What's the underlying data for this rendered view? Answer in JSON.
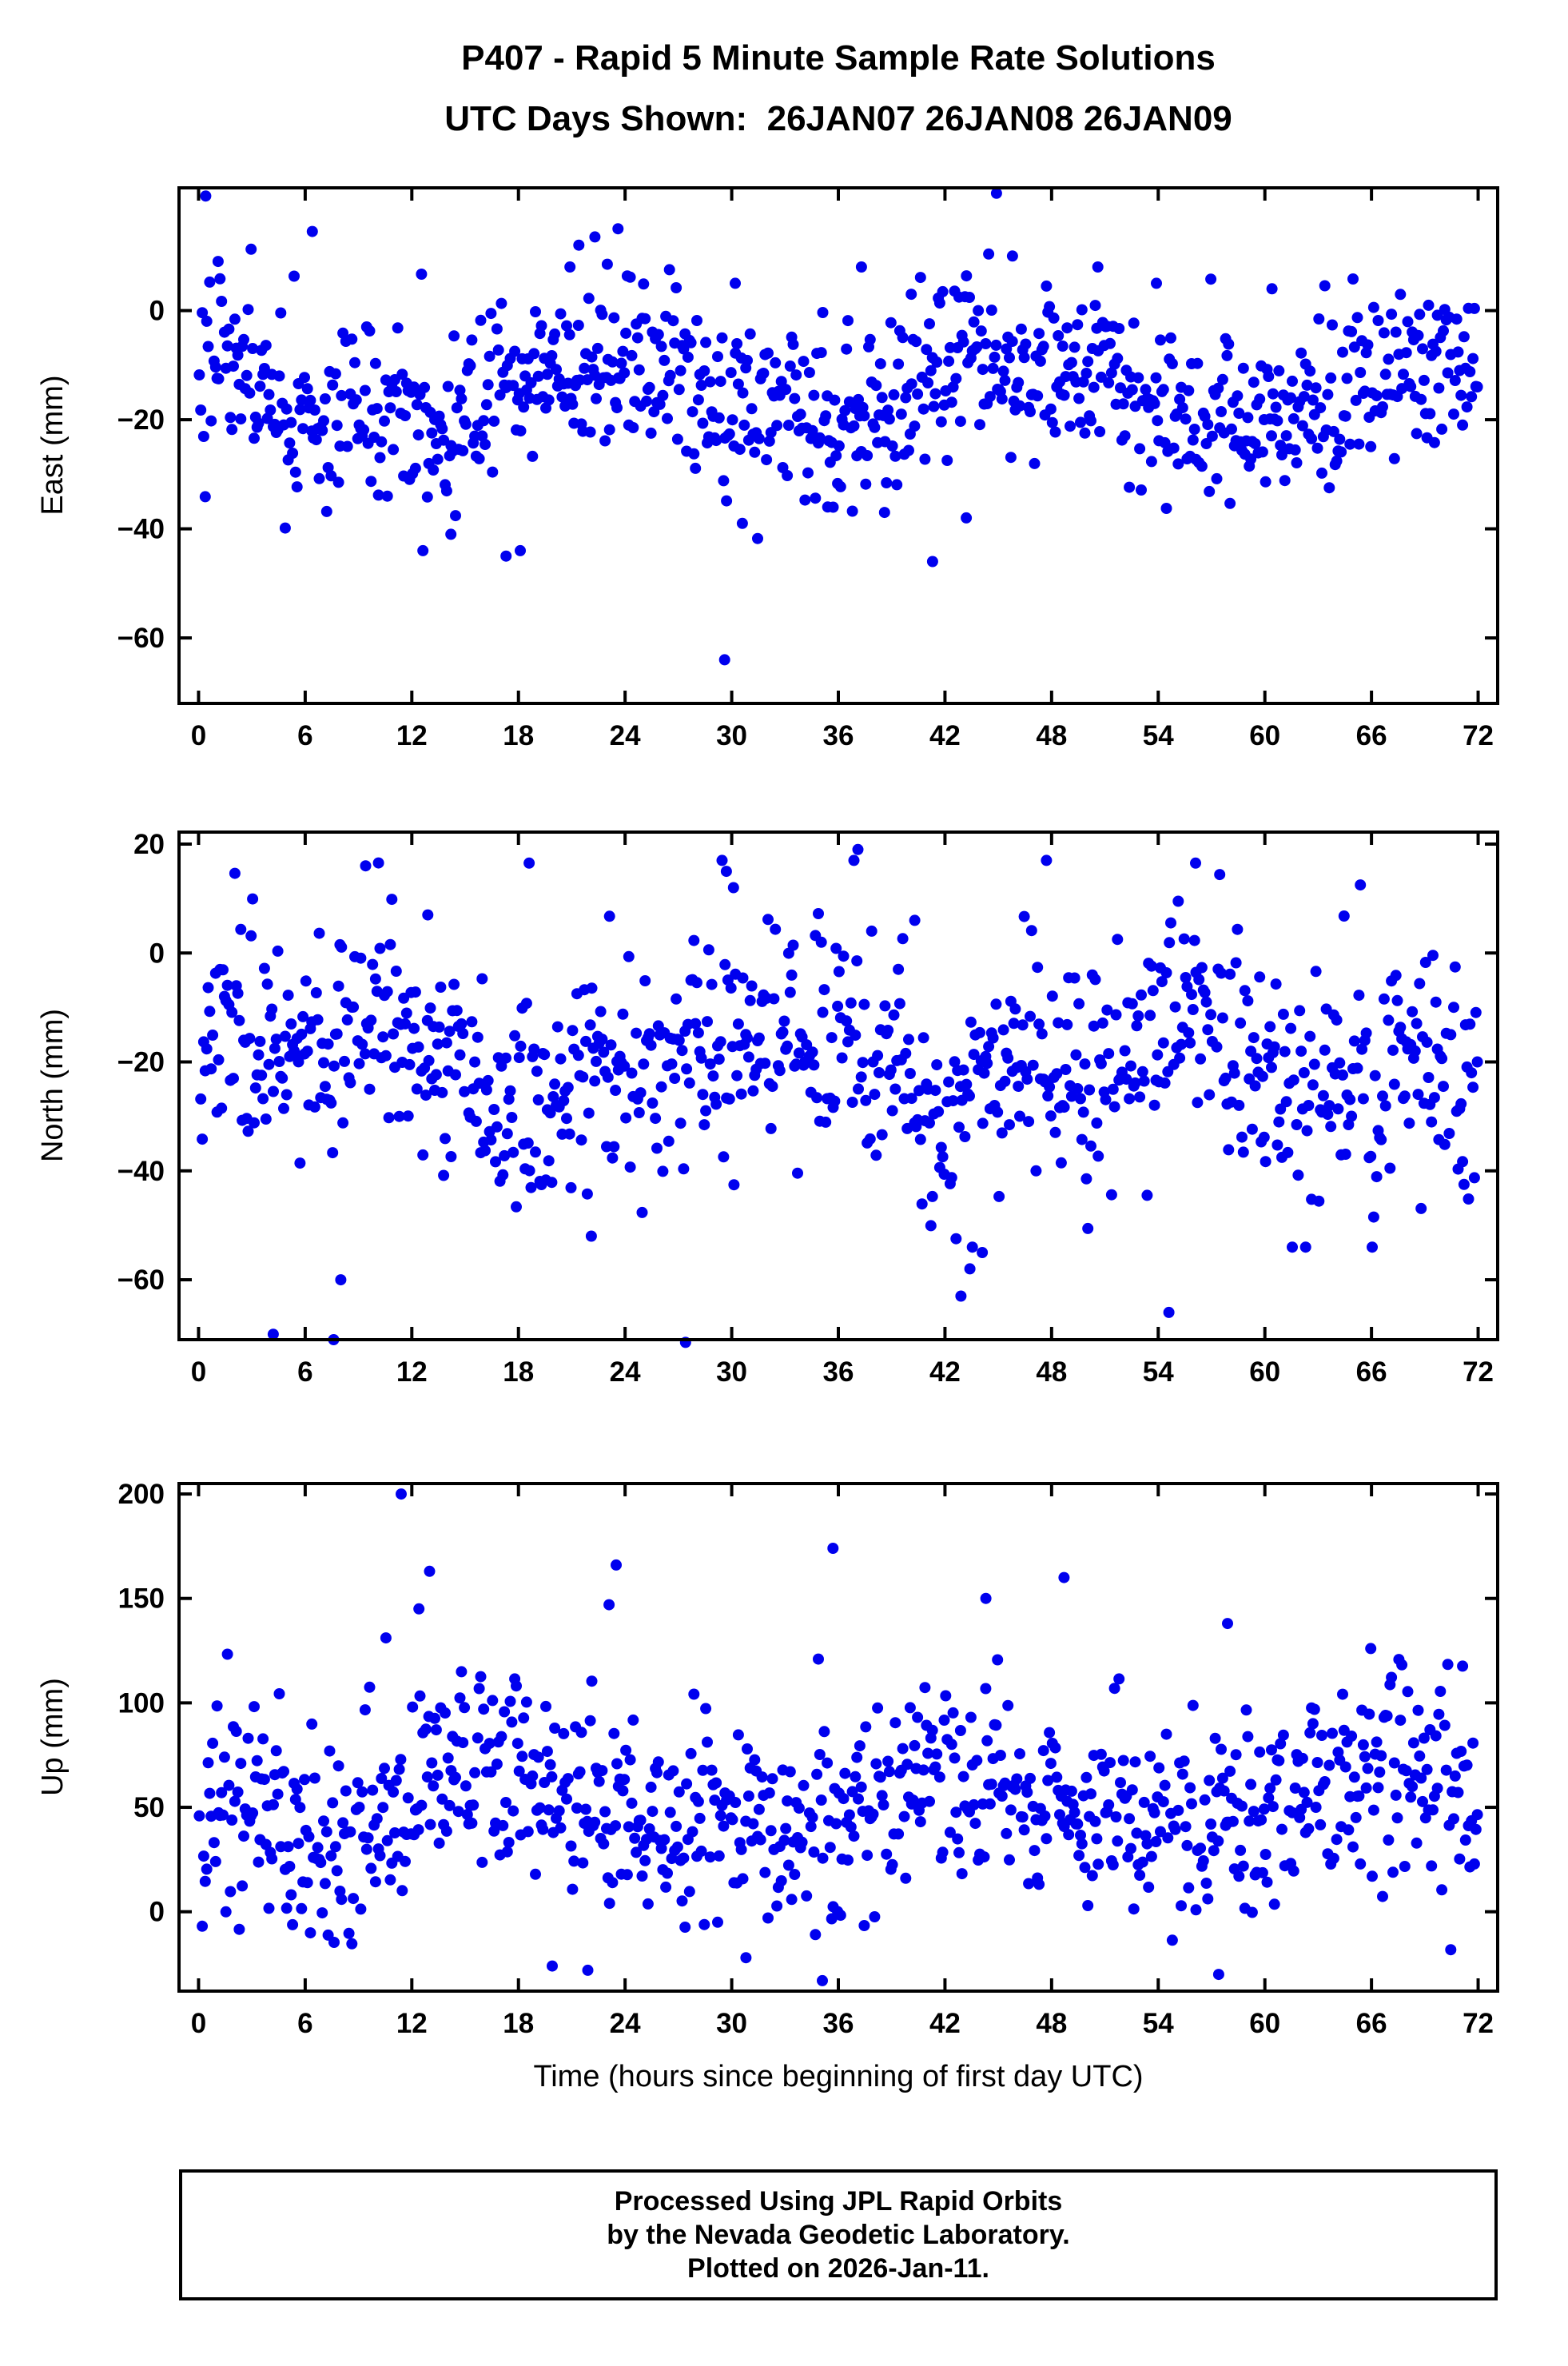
{
  "title": "P407 - Rapid 5 Minute Sample Rate Solutions",
  "subtitle": "UTC Days Shown:  26JAN07 26JAN08 26JAN09",
  "xlabel": "Time (hours since beginning of first day UTC)",
  "footer": {
    "lines": [
      "Processed Using JPL Rapid Orbits",
      "by the Nevada Geodetic Laboratory.",
      "Plotted on 2026-Jan-11."
    ]
  },
  "colors": {
    "point": "#0000ee",
    "frame": "#000000",
    "background": "#ffffff"
  },
  "chart_data": [
    {
      "type": "scatter",
      "name": "east",
      "ylabel": "East (mm)",
      "xlim": [
        -1.1,
        73.1
      ],
      "ylim": [
        -72,
        22.5
      ],
      "xticks": [
        {
          "v": 0,
          "label": "0"
        },
        {
          "v": 6,
          "label": "6"
        },
        {
          "v": 12,
          "label": "12"
        },
        {
          "v": 18,
          "label": "18"
        },
        {
          "v": 24,
          "label": "24"
        },
        {
          "v": 30,
          "label": "30"
        },
        {
          "v": 36,
          "label": "36"
        },
        {
          "v": 42,
          "label": "42"
        },
        {
          "v": 48,
          "label": "48"
        },
        {
          "v": 54,
          "label": "54"
        },
        {
          "v": 60,
          "label": "60"
        },
        {
          "v": 66,
          "label": "66"
        },
        {
          "v": 72,
          "label": "72"
        }
      ],
      "yticks": [
        {
          "v": 0,
          "label": "0"
        },
        {
          "v": -20,
          "label": "−20"
        },
        {
          "v": -40,
          "label": "−40"
        },
        {
          "v": -60,
          "label": "−60"
        }
      ],
      "point_color": "#0000ee",
      "hours": 72,
      "sample_minutes": 5,
      "gen": {
        "seed": 42,
        "n": 864,
        "dropout": 0.04,
        "mean": -15.5,
        "std": 7.5,
        "wave": [
          [
            5,
            24,
            2.1
          ],
          [
            2.5,
            8.2,
            0.6
          ]
        ],
        "spike_prob": 0.05,
        "spike_mult": 1.9,
        "clamp": [
          -44,
          18
        ]
      },
      "outliers": [
        [
          0.4,
          21
        ],
        [
          1.1,
          9
        ],
        [
          6.4,
          14.5
        ],
        [
          20.9,
          8
        ],
        [
          21.4,
          12
        ],
        [
          22.3,
          13.5
        ],
        [
          23.0,
          8.5
        ],
        [
          23.6,
          15
        ],
        [
          26.5,
          7.5
        ],
        [
          30.2,
          5
        ],
        [
          37.3,
          8
        ],
        [
          40.1,
          3
        ],
        [
          44.9,
          21.5
        ],
        [
          45.8,
          10
        ],
        [
          50.6,
          8
        ],
        [
          53.9,
          5
        ],
        [
          60.4,
          4
        ],
        [
          29.6,
          -64
        ],
        [
          17.3,
          -45
        ],
        [
          18.1,
          -44
        ],
        [
          14.2,
          -41
        ],
        [
          41.3,
          -46
        ],
        [
          38.6,
          -37
        ],
        [
          30.6,
          -39
        ],
        [
          35.4,
          -36
        ],
        [
          43.2,
          -38
        ]
      ]
    },
    {
      "type": "scatter",
      "name": "north",
      "ylabel": "North (mm)",
      "xlim": [
        -1.1,
        73.1
      ],
      "ylim": [
        -71,
        22.2
      ],
      "xticks": [
        {
          "v": 0,
          "label": "0"
        },
        {
          "v": 6,
          "label": "6"
        },
        {
          "v": 12,
          "label": "12"
        },
        {
          "v": 18,
          "label": "18"
        },
        {
          "v": 24,
          "label": "24"
        },
        {
          "v": 30,
          "label": "30"
        },
        {
          "v": 36,
          "label": "36"
        },
        {
          "v": 42,
          "label": "42"
        },
        {
          "v": 48,
          "label": "48"
        },
        {
          "v": 54,
          "label": "54"
        },
        {
          "v": 60,
          "label": "60"
        },
        {
          "v": 66,
          "label": "66"
        },
        {
          "v": 72,
          "label": "72"
        }
      ],
      "yticks": [
        {
          "v": 20,
          "label": "20"
        },
        {
          "v": 0,
          "label": "0"
        },
        {
          "v": -20,
          "label": "−20"
        },
        {
          "v": -40,
          "label": "−40"
        },
        {
          "v": -60,
          "label": "−60"
        }
      ],
      "point_color": "#0000ee",
      "hours": 72,
      "sample_minutes": 5,
      "gen": {
        "seed": 7,
        "n": 864,
        "dropout": 0.04,
        "mean": -20,
        "std": 10,
        "wave": [
          [
            6,
            24,
            6.0
          ],
          [
            3.5,
            11,
            1.0
          ]
        ],
        "spike_prob": 0.05,
        "spike_mult": 1.7,
        "clamp": [
          -54,
          17
        ]
      },
      "outliers": [
        [
          9.4,
          16
        ],
        [
          18.6,
          16.5
        ],
        [
          29.7,
          15
        ],
        [
          30.1,
          12
        ],
        [
          37.1,
          19
        ],
        [
          56.1,
          16.5
        ],
        [
          12.9,
          7
        ],
        [
          40.3,
          6
        ],
        [
          4.2,
          -70
        ],
        [
          7.6,
          -71
        ],
        [
          27.4,
          -71.5
        ],
        [
          42.9,
          -63
        ],
        [
          43.4,
          -58
        ],
        [
          44.1,
          -55
        ],
        [
          54.6,
          -66
        ],
        [
          8.0,
          -60
        ],
        [
          22.1,
          -52
        ]
      ]
    },
    {
      "type": "scatter",
      "name": "up",
      "ylabel": "Up (mm)",
      "xlim": [
        -1.1,
        73.1
      ],
      "ylim": [
        -38,
        205
      ],
      "xticks": [
        {
          "v": 0,
          "label": "0"
        },
        {
          "v": 6,
          "label": "6"
        },
        {
          "v": 12,
          "label": "12"
        },
        {
          "v": 18,
          "label": "18"
        },
        {
          "v": 24,
          "label": "24"
        },
        {
          "v": 30,
          "label": "30"
        },
        {
          "v": 36,
          "label": "36"
        },
        {
          "v": 42,
          "label": "42"
        },
        {
          "v": 48,
          "label": "48"
        },
        {
          "v": 54,
          "label": "54"
        },
        {
          "v": 60,
          "label": "60"
        },
        {
          "v": 66,
          "label": "66"
        },
        {
          "v": 72,
          "label": "72"
        }
      ],
      "yticks": [
        {
          "v": 200,
          "label": "200"
        },
        {
          "v": 150,
          "label": "150"
        },
        {
          "v": 100,
          "label": "100"
        },
        {
          "v": 50,
          "label": "50"
        },
        {
          "v": 0,
          "label": "0"
        }
      ],
      "point_color": "#0000ee",
      "hours": 72,
      "sample_minutes": 5,
      "gen": {
        "seed": 99,
        "n": 864,
        "dropout": 0.04,
        "mean": 52,
        "std": 23,
        "wave": [
          [
            12,
            24,
            3.1
          ],
          [
            7,
            13,
            0.4
          ]
        ],
        "spike_prob": 0.05,
        "spike_mult": 1.6,
        "clamp": [
          -30,
          138
        ]
      },
      "outliers": [
        [
          11.4,
          200
        ],
        [
          35.7,
          174
        ],
        [
          23.5,
          166
        ],
        [
          13.0,
          163
        ],
        [
          48.7,
          160
        ],
        [
          44.3,
          150
        ],
        [
          23.1,
          147
        ],
        [
          12.4,
          145
        ],
        [
          57.9,
          138
        ],
        [
          21.9,
          -28
        ],
        [
          35.1,
          -33
        ],
        [
          57.4,
          -30
        ],
        [
          19.9,
          -26
        ],
        [
          30.8,
          -22
        ]
      ]
    }
  ]
}
